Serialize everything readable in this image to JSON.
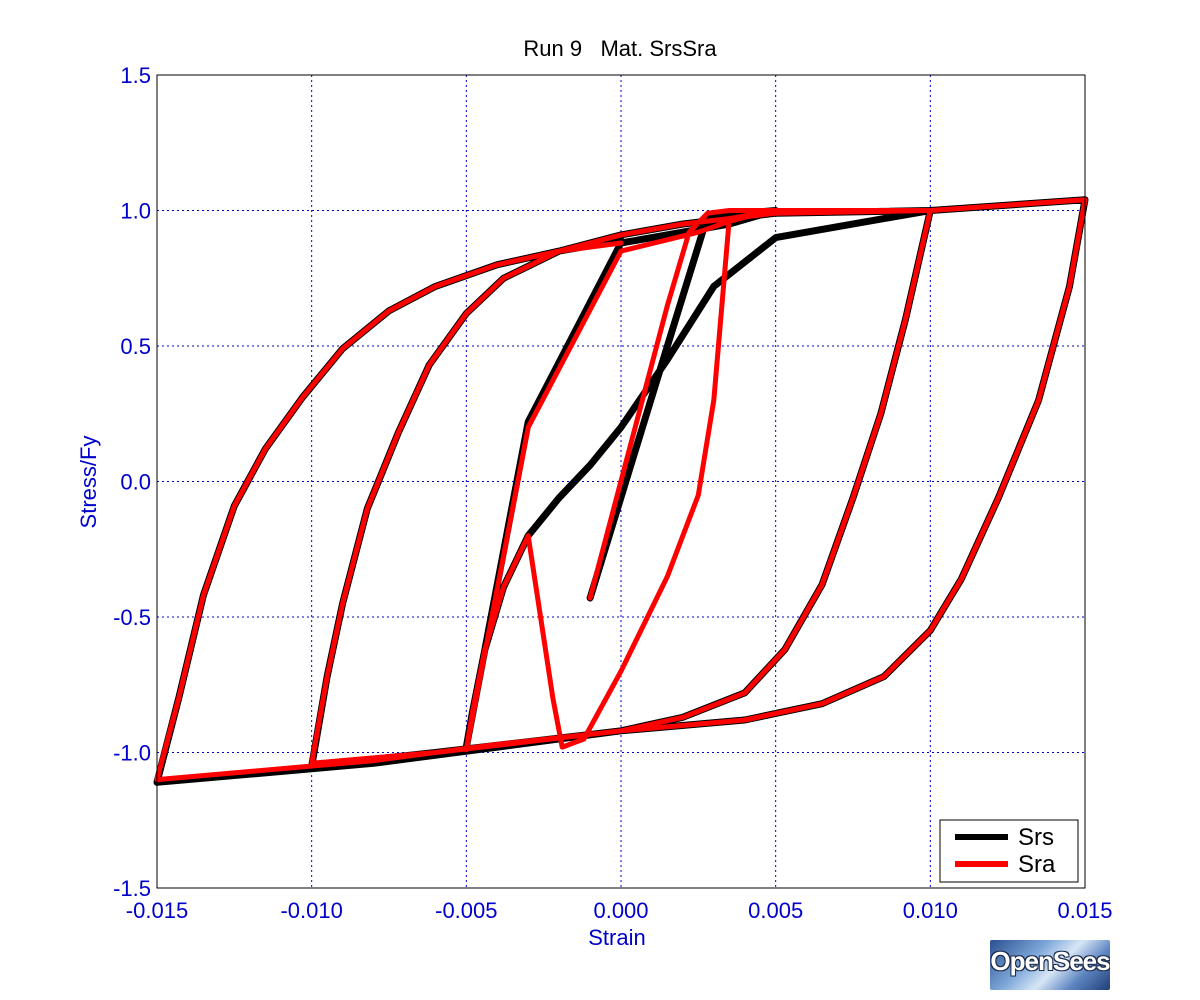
{
  "chart_data": {
    "type": "line",
    "title": "Run 9   Mat. SrsSra",
    "xlabel": "Strain",
    "ylabel": "Stress/Fy",
    "xlim": [
      -0.015,
      0.015
    ],
    "ylim": [
      -1.5,
      1.5
    ],
    "xticks": [
      -0.015,
      -0.01,
      -0.005,
      0.0,
      0.005,
      0.01,
      0.015
    ],
    "xtick_labels": [
      "-0.015",
      "-0.010",
      "-0.005",
      "0.000",
      "0.005",
      "0.010",
      "0.015"
    ],
    "yticks": [
      -1.5,
      -1.0,
      -0.5,
      0.0,
      0.5,
      1.0,
      1.5
    ],
    "ytick_labels": [
      "-1.5",
      "-1.0",
      "-0.5",
      "0.0",
      "0.5",
      "1.0",
      "1.5"
    ],
    "grid": true,
    "legend_position": "bottom-right",
    "colors": {
      "axis_text": "#0000cc",
      "grid": "#0000cc"
    },
    "series": [
      {
        "name": "Srs",
        "color": "#000000",
        "x": [
          -0.001,
          0.0015,
          0.0028,
          0.005,
          0.0035,
          0.0,
          -0.003,
          -0.005,
          -0.0048,
          -0.0044,
          -0.0038,
          -0.003,
          -0.002,
          -0.001,
          0.0,
          0.0015,
          0.003,
          0.005,
          0.0085,
          0.01,
          0.0092,
          0.0084,
          0.0075,
          0.0065,
          0.0053,
          0.004,
          0.002,
          0.0,
          -0.003,
          -0.006,
          -0.01,
          -0.0095,
          -0.009,
          -0.0082,
          -0.0072,
          -0.0062,
          -0.005,
          -0.0038,
          -0.002,
          0.0,
          0.002,
          0.005,
          0.01,
          0.015,
          0.0145,
          0.0135,
          0.0122,
          0.011,
          0.01,
          0.0085,
          0.0065,
          0.004,
          0.0,
          -0.004,
          -0.008,
          -0.012,
          -0.015,
          -0.0143,
          -0.0135,
          -0.0125,
          -0.0115,
          -0.0103,
          -0.009,
          -0.0075,
          -0.006,
          -0.004,
          -0.002,
          0.0
        ],
        "y": [
          -0.43,
          0.5,
          0.98,
          1.0,
          0.95,
          0.88,
          0.22,
          -0.98,
          -0.85,
          -0.62,
          -0.39,
          -0.2,
          -0.06,
          0.06,
          0.2,
          0.45,
          0.72,
          0.9,
          0.97,
          1.0,
          0.6,
          0.25,
          -0.06,
          -0.38,
          -0.62,
          -0.78,
          -0.87,
          -0.92,
          -0.96,
          -1.0,
          -1.05,
          -0.72,
          -0.45,
          -0.1,
          0.18,
          0.43,
          0.62,
          0.75,
          0.85,
          0.91,
          0.95,
          0.99,
          1.0,
          1.04,
          0.72,
          0.3,
          -0.06,
          -0.36,
          -0.55,
          -0.72,
          -0.82,
          -0.88,
          -0.92,
          -0.98,
          -1.04,
          -1.08,
          -1.11,
          -0.8,
          -0.42,
          -0.09,
          0.12,
          0.31,
          0.49,
          0.63,
          0.72,
          0.8,
          0.85,
          0.89
        ]
      },
      {
        "name": "Sra",
        "color": "#ff0000",
        "x": [
          -0.001,
          0.0015,
          0.0022,
          0.0028,
          0.0035,
          0.005,
          0.0045,
          0.0035,
          0.0025,
          0.0,
          -0.003,
          -0.005,
          -0.0048,
          -0.0044,
          -0.0038,
          -0.003,
          -0.0022,
          -0.0019,
          -0.0012,
          0.0,
          0.0015,
          0.0025,
          0.003,
          0.0035,
          0.005,
          0.0085,
          0.01,
          0.0092,
          0.0084,
          0.0075,
          0.0065,
          0.0053,
          0.004,
          0.002,
          0.0,
          -0.003,
          -0.006,
          -0.01,
          -0.0095,
          -0.009,
          -0.0082,
          -0.0072,
          -0.0062,
          -0.005,
          -0.0038,
          -0.002,
          0.0,
          0.002,
          0.005,
          0.01,
          0.015,
          0.0145,
          0.0135,
          0.0122,
          0.011,
          0.01,
          0.0085,
          0.0065,
          0.004,
          0.0,
          -0.004,
          -0.008,
          -0.012,
          -0.015,
          -0.0143,
          -0.0135,
          -0.0125,
          -0.0115,
          -0.0103,
          -0.009,
          -0.0075,
          -0.006,
          -0.004,
          -0.002,
          0.0
        ],
        "y": [
          -0.43,
          0.65,
          0.92,
          0.99,
          1.0,
          1.0,
          0.99,
          0.96,
          0.92,
          0.85,
          0.2,
          -0.99,
          -0.85,
          -0.62,
          -0.39,
          -0.2,
          -0.8,
          -0.98,
          -0.95,
          -0.7,
          -0.35,
          -0.05,
          0.3,
          0.97,
          1.0,
          1.0,
          1.0,
          0.6,
          0.25,
          -0.06,
          -0.38,
          -0.62,
          -0.78,
          -0.87,
          -0.92,
          -0.96,
          -1.0,
          -1.04,
          -0.72,
          -0.45,
          -0.1,
          0.18,
          0.43,
          0.62,
          0.75,
          0.85,
          0.91,
          0.95,
          0.99,
          1.0,
          1.04,
          0.72,
          0.3,
          -0.06,
          -0.36,
          -0.55,
          -0.72,
          -0.82,
          -0.88,
          -0.92,
          -0.97,
          -1.03,
          -1.07,
          -1.1,
          -0.8,
          -0.42,
          -0.09,
          0.12,
          0.31,
          0.49,
          0.63,
          0.72,
          0.8,
          0.85,
          0.88
        ]
      }
    ]
  },
  "logo": {
    "text": "OpenSees"
  }
}
